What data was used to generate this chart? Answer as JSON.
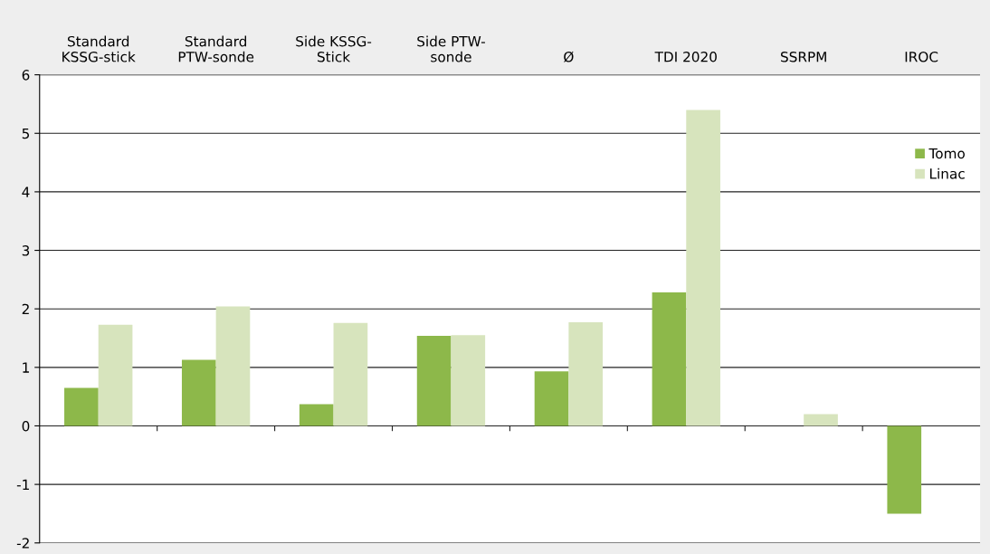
{
  "chart_data": {
    "type": "bar",
    "categories": [
      "Standard\nKSSG-stick",
      "Standard\nPTW-sonde",
      "Side KSSG-\nStick",
      "Side PTW-\nsonde",
      "Ø",
      "TDI 2020",
      "SSRPM",
      "IROC"
    ],
    "series": [
      {
        "name": "Tomo",
        "color": "#8db84a",
        "values": [
          0.65,
          1.13,
          0.37,
          1.54,
          0.93,
          2.28,
          null,
          -1.5
        ]
      },
      {
        "name": "Linac",
        "color": "#d7e4bd",
        "values": [
          1.73,
          2.04,
          1.76,
          1.55,
          1.77,
          5.4,
          0.2,
          null
        ]
      }
    ],
    "ylim": [
      -2,
      6
    ],
    "yticks": [
      -2,
      -1,
      0,
      1,
      2,
      3,
      4,
      5,
      6
    ],
    "grid": "y",
    "legend": "top right"
  }
}
